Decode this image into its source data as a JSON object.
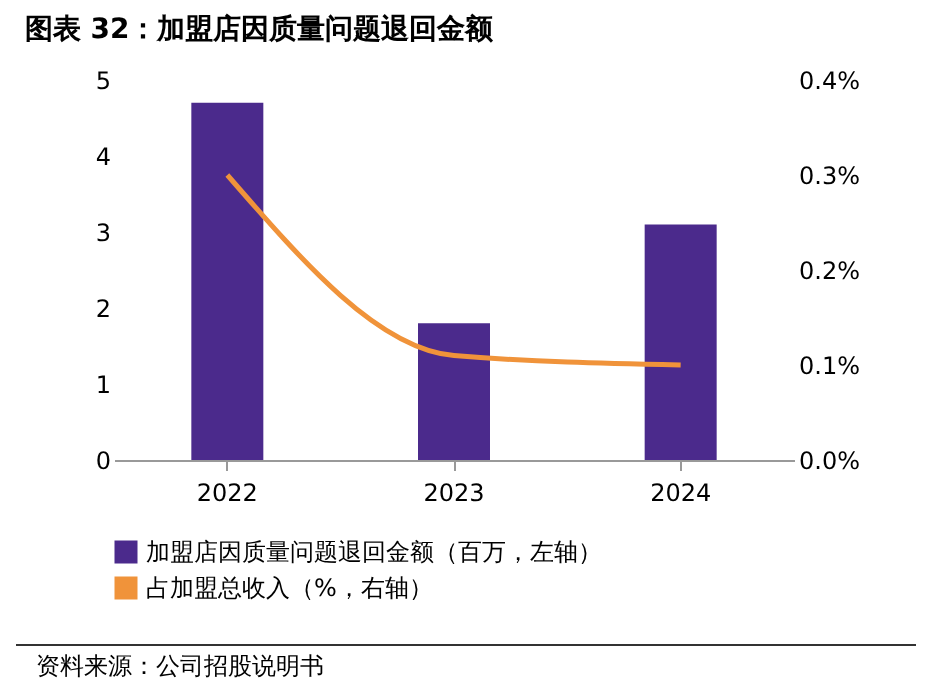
{
  "chart_data": {
    "type": "bar",
    "title": "图表 32：加盟店因质量问题退回金额",
    "categories": [
      "2022",
      "2023",
      "2024"
    ],
    "series": [
      {
        "name": "加盟店因质量问题退回金额（百万，左轴）",
        "color": "#4b2a8c",
        "values": [
          4.7,
          1.8,
          3.1
        ]
      },
      {
        "name": "占加盟总收入（%，右轴）",
        "type": "line",
        "axis": "y2",
        "color": "#f0933a",
        "values": [
          0.3,
          0.11,
          0.1
        ]
      }
    ],
    "ylim": [
      0,
      5
    ],
    "yticks": [
      0,
      1,
      2,
      3,
      4,
      5
    ],
    "y2lim": [
      0,
      0.4
    ],
    "y2ticks": [
      {
        "value": 0,
        "label": "0.0%"
      },
      {
        "value": 0.1,
        "label": "0.1%"
      },
      {
        "value": 0.2,
        "label": "0.2%"
      },
      {
        "value": 0.3,
        "label": "0.3%"
      },
      {
        "value": 0.4,
        "label": "0.4%"
      }
    ],
    "legend": "bottom",
    "grid": false,
    "annotations": [
      "资料来源：公司招股说明书"
    ]
  }
}
